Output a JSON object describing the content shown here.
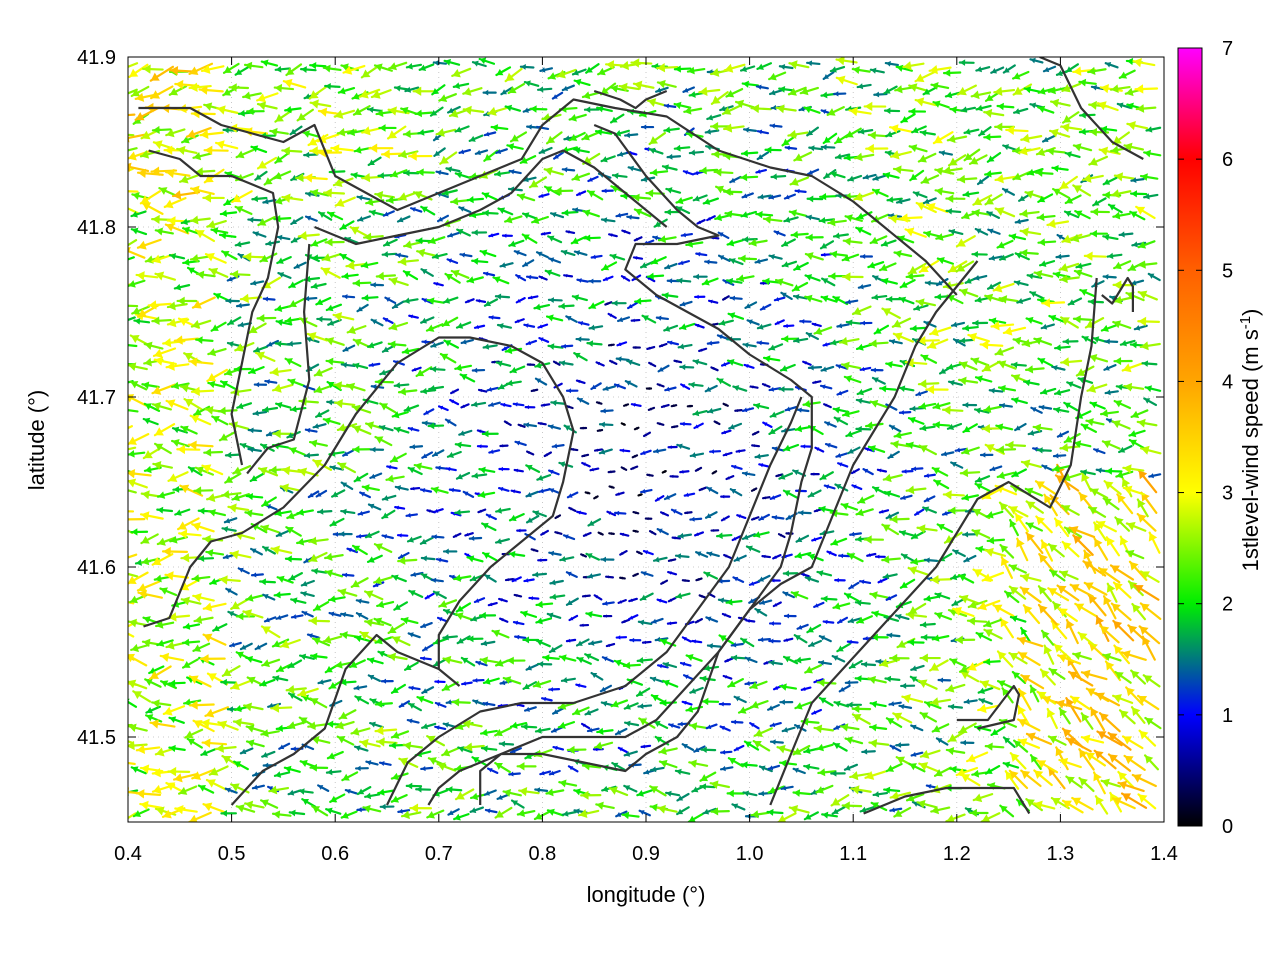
{
  "chart_data": {
    "type": "vector-field",
    "xlabel": "longitude (°)",
    "ylabel": "latitude (°)",
    "xlim": [
      0.4,
      1.4
    ],
    "ylim": [
      41.45,
      41.9
    ],
    "x_ticks": [
      "0.4",
      "0.5",
      "0.6",
      "0.7",
      "0.8",
      "0.9",
      "1.0",
      "1.1",
      "1.2",
      "1.3",
      "1.4"
    ],
    "y_ticks": [
      "41.5",
      "41.6",
      "41.7",
      "41.8",
      "41.9"
    ],
    "grid": true,
    "colorbar": {
      "label_main": "1stlevel-wind speed (m s",
      "label_sup": "-1",
      "label_end": ")",
      "range": [
        0,
        7
      ],
      "ticks": [
        "0",
        "1",
        "2",
        "3",
        "4",
        "5",
        "6",
        "7"
      ],
      "colormap": [
        "#000000",
        "#0000ff",
        "#00ff00",
        "#ffff00",
        "#ff0000",
        "#ff00ff"
      ]
    },
    "field_summary": {
      "grid_step": 0.0125,
      "dominant_direction": "westward (flow toward the west)",
      "low_speed_region": "central basin (about 0.75–1.05°, 41.55–41.8°)",
      "high_speed_regions": [
        "south-east corner",
        "west edge",
        "north-west"
      ]
    },
    "contour_lines": [
      [
        [
          0.41,
          41.87
        ],
        [
          0.46,
          41.87
        ],
        [
          0.49,
          41.86
        ],
        [
          0.52,
          41.855
        ],
        [
          0.55,
          41.85
        ],
        [
          0.58,
          41.86
        ],
        [
          0.6,
          41.83
        ],
        [
          0.63,
          41.82
        ],
        [
          0.66,
          41.81
        ],
        [
          0.7,
          41.82
        ],
        [
          0.74,
          41.83
        ],
        [
          0.78,
          41.84
        ],
        [
          0.8,
          41.86
        ],
        [
          0.83,
          41.875
        ],
        [
          0.87,
          41.87
        ],
        [
          0.92,
          41.865
        ],
        [
          0.97,
          41.845
        ],
        [
          1.02,
          41.835
        ],
        [
          1.06,
          41.83
        ],
        [
          1.1,
          41.815
        ],
        [
          1.15,
          41.79
        ],
        [
          1.17,
          41.78
        ],
        [
          1.2,
          41.76
        ]
      ],
      [
        [
          0.42,
          41.845
        ],
        [
          0.45,
          41.84
        ],
        [
          0.47,
          41.83
        ],
        [
          0.5,
          41.83
        ],
        [
          0.54,
          41.82
        ],
        [
          0.545,
          41.8
        ],
        [
          0.535,
          41.77
        ],
        [
          0.52,
          41.75
        ],
        [
          0.51,
          41.72
        ],
        [
          0.5,
          41.69
        ],
        [
          0.51,
          41.66
        ]
      ],
      [
        [
          0.575,
          41.79
        ],
        [
          0.57,
          41.75
        ],
        [
          0.575,
          41.71
        ],
        [
          0.56,
          41.675
        ],
        [
          0.535,
          41.67
        ],
        [
          0.515,
          41.655
        ]
      ],
      [
        [
          0.58,
          41.8
        ],
        [
          0.62,
          41.79
        ],
        [
          0.66,
          41.795
        ],
        [
          0.7,
          41.8
        ],
        [
          0.74,
          41.81
        ],
        [
          0.77,
          41.82
        ],
        [
          0.8,
          41.84
        ],
        [
          0.82,
          41.845
        ],
        [
          0.85,
          41.835
        ],
        [
          0.88,
          41.82
        ],
        [
          0.9,
          41.81
        ],
        [
          0.92,
          41.8
        ]
      ],
      [
        [
          0.85,
          41.86
        ],
        [
          0.87,
          41.855
        ],
        [
          0.9,
          41.83
        ],
        [
          0.93,
          41.81
        ],
        [
          0.95,
          41.8
        ],
        [
          0.97,
          41.795
        ],
        [
          0.93,
          41.79
        ],
        [
          0.89,
          41.79
        ],
        [
          0.88,
          41.775
        ],
        [
          0.91,
          41.76
        ],
        [
          0.94,
          41.75
        ],
        [
          0.97,
          41.74
        ],
        [
          1.0,
          41.725
        ],
        [
          1.04,
          41.71
        ],
        [
          1.06,
          41.7
        ],
        [
          1.06,
          41.67
        ],
        [
          1.05,
          41.65
        ],
        [
          1.04,
          41.62
        ],
        [
          1.03,
          41.6
        ],
        [
          1.0,
          41.575
        ],
        [
          0.97,
          41.55
        ],
        [
          0.94,
          41.53
        ],
        [
          0.91,
          41.51
        ],
        [
          0.88,
          41.5
        ],
        [
          0.84,
          41.5
        ],
        [
          0.8,
          41.5
        ],
        [
          0.76,
          41.49
        ],
        [
          0.72,
          41.48
        ],
        [
          0.7,
          41.47
        ],
        [
          0.69,
          41.46
        ]
      ],
      [
        [
          0.415,
          41.565
        ],
        [
          0.44,
          41.57
        ],
        [
          0.46,
          41.6
        ],
        [
          0.48,
          41.615
        ],
        [
          0.51,
          41.62
        ],
        [
          0.55,
          41.635
        ],
        [
          0.59,
          41.66
        ],
        [
          0.62,
          41.69
        ],
        [
          0.66,
          41.72
        ],
        [
          0.7,
          41.735
        ],
        [
          0.73,
          41.735
        ],
        [
          0.77,
          41.73
        ],
        [
          0.8,
          41.72
        ],
        [
          0.82,
          41.7
        ],
        [
          0.83,
          41.68
        ],
        [
          0.82,
          41.65
        ],
        [
          0.81,
          41.63
        ],
        [
          0.79,
          41.62
        ],
        [
          0.75,
          41.6
        ],
        [
          0.72,
          41.58
        ],
        [
          0.7,
          41.56
        ],
        [
          0.7,
          41.54
        ],
        [
          0.72,
          41.53
        ]
      ],
      [
        [
          0.5,
          41.46
        ],
        [
          0.53,
          41.48
        ],
        [
          0.56,
          41.49
        ],
        [
          0.59,
          41.505
        ],
        [
          0.61,
          41.54
        ],
        [
          0.64,
          41.56
        ],
        [
          0.66,
          41.55
        ],
        [
          0.7,
          41.54
        ]
      ],
      [
        [
          0.65,
          41.46
        ],
        [
          0.67,
          41.485
        ],
        [
          0.7,
          41.5
        ],
        [
          0.74,
          41.515
        ],
        [
          0.78,
          41.52
        ],
        [
          0.83,
          41.52
        ],
        [
          0.88,
          41.53
        ],
        [
          0.92,
          41.55
        ],
        [
          0.95,
          41.575
        ],
        [
          0.98,
          41.6
        ],
        [
          1.0,
          41.63
        ],
        [
          1.02,
          41.66
        ],
        [
          1.04,
          41.685
        ],
        [
          1.05,
          41.7
        ]
      ],
      [
        [
          0.74,
          41.46
        ],
        [
          0.74,
          41.48
        ],
        [
          0.76,
          41.49
        ],
        [
          0.8,
          41.49
        ],
        [
          0.84,
          41.485
        ],
        [
          0.88,
          41.48
        ],
        [
          0.9,
          41.49
        ],
        [
          0.93,
          41.5
        ],
        [
          0.95,
          41.515
        ],
        [
          0.97,
          41.55
        ],
        [
          1.0,
          41.575
        ],
        [
          1.03,
          41.59
        ],
        [
          1.06,
          41.6
        ],
        [
          1.08,
          41.63
        ],
        [
          1.1,
          41.66
        ],
        [
          1.12,
          41.68
        ],
        [
          1.14,
          41.7
        ],
        [
          1.16,
          41.73
        ],
        [
          1.18,
          41.75
        ],
        [
          1.2,
          41.765
        ],
        [
          1.22,
          41.78
        ]
      ],
      [
        [
          1.02,
          41.46
        ],
        [
          1.04,
          41.49
        ],
        [
          1.06,
          41.52
        ],
        [
          1.09,
          41.54
        ],
        [
          1.12,
          41.56
        ],
        [
          1.15,
          41.58
        ],
        [
          1.18,
          41.6
        ],
        [
          1.2,
          41.62
        ],
        [
          1.22,
          41.64
        ],
        [
          1.25,
          41.65
        ],
        [
          1.29,
          41.635
        ],
        [
          1.31,
          41.66
        ],
        [
          1.32,
          41.7
        ],
        [
          1.33,
          41.73
        ],
        [
          1.335,
          41.77
        ]
      ],
      [
        [
          1.11,
          41.455
        ],
        [
          1.15,
          41.465
        ],
        [
          1.19,
          41.47
        ],
        [
          1.22,
          41.47
        ],
        [
          1.255,
          41.47
        ],
        [
          1.27,
          41.455
        ]
      ],
      [
        [
          1.2,
          41.51
        ],
        [
          1.23,
          41.51
        ],
        [
          1.255,
          41.53
        ],
        [
          1.26,
          41.525
        ],
        [
          1.255,
          41.51
        ],
        [
          1.22,
          41.505
        ]
      ],
      [
        [
          1.34,
          41.76
        ],
        [
          1.35,
          41.755
        ],
        [
          1.365,
          41.77
        ],
        [
          1.37,
          41.765
        ],
        [
          1.37,
          41.75
        ]
      ],
      [
        [
          0.85,
          41.88
        ],
        [
          0.875,
          41.875
        ],
        [
          0.89,
          41.87
        ],
        [
          0.9,
          41.875
        ],
        [
          0.92,
          41.88
        ]
      ],
      [
        [
          1.28,
          41.9
        ],
        [
          1.3,
          41.895
        ],
        [
          1.32,
          41.87
        ],
        [
          1.35,
          41.85
        ],
        [
          1.38,
          41.84
        ]
      ]
    ]
  }
}
